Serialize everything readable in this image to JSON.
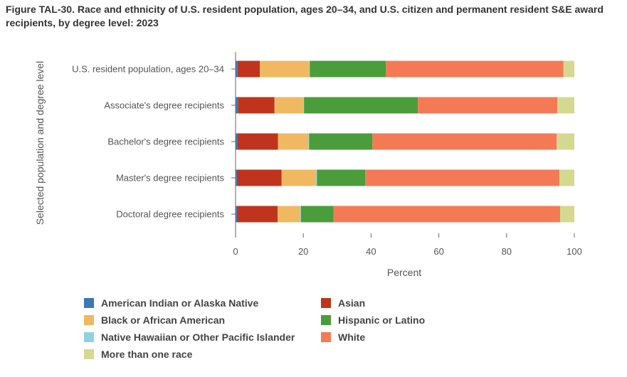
{
  "chart_data": {
    "type": "bar",
    "orientation": "horizontal",
    "stacked": true,
    "title": "Figure TAL-30. Race and ethnicity of U.S. resident population, ages 20–34, and U.S. citizen and permanent resident S&E award recipients, by degree level: 2023",
    "xlabel": "Percent",
    "ylabel": "Selected population and degree level",
    "xlim": [
      0,
      100
    ],
    "xticks": [
      0,
      20,
      40,
      60,
      80,
      100
    ],
    "categories": [
      "U.S. resident population, ages 20–34",
      "Associate's degree recipients",
      "Bachelor's degree recipients",
      "Master's degree recipients",
      "Doctoral degree recipients"
    ],
    "series": [
      {
        "name": "American Indian or Alaska Native",
        "color": "#3a78b6",
        "values": [
          0.6,
          0.7,
          0.5,
          0.4,
          0.4
        ]
      },
      {
        "name": "Asian",
        "color": "#c0341d",
        "values": [
          6.6,
          10.8,
          12.0,
          13.2,
          12.0
        ]
      },
      {
        "name": "Black or African American",
        "color": "#f0b961",
        "values": [
          14.5,
          8.5,
          9.0,
          10.2,
          6.7
        ]
      },
      {
        "name": "Native Hawaiian or Other Pacific Islander",
        "color": "#8fd3e3",
        "values": [
          0.2,
          0.2,
          0.2,
          0.2,
          0.2
        ]
      },
      {
        "name": "Hispanic or Latino",
        "color": "#4a9d3a",
        "values": [
          22.5,
          33.6,
          18.7,
          14.3,
          9.6
        ]
      },
      {
        "name": "White",
        "color": "#f47a55",
        "values": [
          52.4,
          41.2,
          54.4,
          57.3,
          66.9
        ]
      },
      {
        "name": "More than one race",
        "color": "#d5d98f",
        "values": [
          3.2,
          5.0,
          5.2,
          4.4,
          4.2
        ]
      }
    ],
    "legend_position": "bottom-left"
  }
}
